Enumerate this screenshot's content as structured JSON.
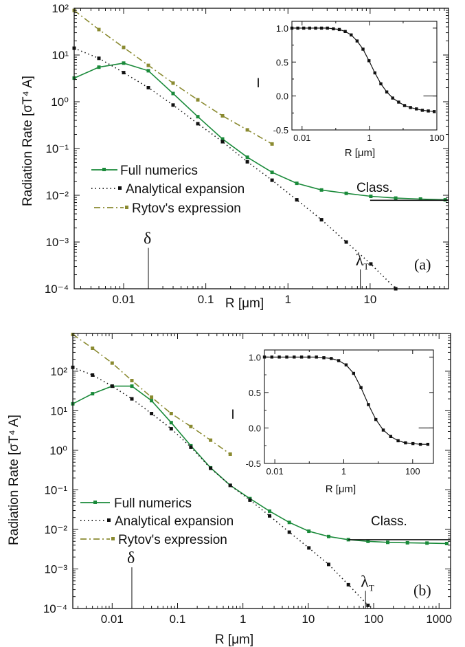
{
  "colors": {
    "full": "#1a8a3a",
    "analytical": "#111111",
    "rytov": "#8a8a30",
    "axis": "#111111"
  },
  "chart_data": [
    {
      "type": "line",
      "panel_label": "(a)",
      "xlabel": "R [μm]",
      "ylabel": "Radiation Rate [σT⁴ A]",
      "xscale": "log",
      "yscale": "log",
      "xlim": [
        0.0025,
        90
      ],
      "ylim": [
        0.0001,
        100
      ],
      "xticks": [
        0.01,
        0.1,
        1,
        10
      ],
      "xticklabels": [
        "0.01",
        "0.1",
        "1",
        "10"
      ],
      "yticks": [
        0.0001,
        0.001,
        0.01,
        0.1,
        1,
        10,
        100
      ],
      "yticklabels": [
        "10⁻⁴",
        "10⁻³",
        "10⁻²",
        "10⁻¹",
        "10⁰",
        "10¹",
        "10²"
      ],
      "series": [
        {
          "name": "Full numerics",
          "style": "full",
          "x": [
            0.0025,
            0.005,
            0.01,
            0.02,
            0.04,
            0.08,
            0.16,
            0.32,
            0.64,
            1.28,
            2.56,
            5.12,
            10.2,
            20.5,
            41,
            82
          ],
          "y": [
            3.2,
            5.5,
            6.7,
            4.6,
            1.5,
            0.48,
            0.16,
            0.065,
            0.031,
            0.018,
            0.013,
            0.011,
            0.0095,
            0.0087,
            0.0083,
            0.008
          ]
        },
        {
          "name": "Analytical expansion",
          "style": "analytical",
          "x": [
            0.0025,
            0.005,
            0.01,
            0.02,
            0.04,
            0.08,
            0.16,
            0.32,
            0.64,
            1.28,
            2.56,
            5.12,
            10.2,
            20.5
          ],
          "y": [
            14,
            8.5,
            4.2,
            2,
            0.85,
            0.34,
            0.14,
            0.052,
            0.021,
            0.008,
            0.003,
            0.001,
            0.00034,
            0.0001
          ]
        },
        {
          "name": "Rytov's expression",
          "style": "rytov",
          "x": [
            0.0025,
            0.005,
            0.01,
            0.02,
            0.04,
            0.08,
            0.16,
            0.32,
            0.64
          ],
          "y": [
            90,
            35,
            14.5,
            6,
            2.5,
            1.1,
            0.5,
            0.25,
            0.125
          ]
        }
      ],
      "classical": {
        "label": "Class.",
        "value": 0.0078,
        "x_from": 10,
        "x_to": 90
      },
      "markers": [
        {
          "label": "δ",
          "x": 0.02,
          "y_top": 0.00075
        },
        {
          "label": "λ",
          "sub": "T",
          "x": 7.6,
          "y_top": 0.00026
        }
      ],
      "inset": {
        "xlabel": "R [μm]",
        "ylabel": "I",
        "xlim": [
          0.005,
          100
        ],
        "ylim": [
          -0.5,
          1.1
        ],
        "xticks": [
          0.01,
          1,
          100
        ],
        "xticklabels": [
          "0.01",
          "1",
          "100"
        ],
        "yticks": [
          -0.5,
          0,
          0.5,
          1
        ],
        "yticklabels": [
          "-0.5",
          "0.0",
          "0.5",
          "1.0"
        ],
        "x": [
          0.005,
          0.0075,
          0.0112,
          0.0168,
          0.0252,
          0.0378,
          0.0567,
          0.085,
          0.1275,
          0.1913,
          0.287,
          0.43,
          0.645,
          0.968,
          1.45,
          2.18,
          3.27,
          4.9,
          7.35,
          11,
          16.5,
          24.8,
          37.2,
          55.8,
          83.7
        ],
        "y": [
          1,
          1,
          1,
          1,
          1,
          1,
          1,
          0.99,
          0.98,
          0.95,
          0.9,
          0.81,
          0.69,
          0.52,
          0.34,
          0.18,
          0.06,
          -0.03,
          -0.09,
          -0.14,
          -0.17,
          -0.19,
          -0.21,
          -0.22,
          -0.23
        ],
        "limit": {
          "value": 0,
          "x_from": 40,
          "x_to": 100
        }
      }
    },
    {
      "type": "line",
      "panel_label": "(b)",
      "xlabel": "R [μm]",
      "ylabel": "Radiation Rate [σT⁴ A]",
      "xscale": "log",
      "yscale": "log",
      "xlim": [
        0.0025,
        1500
      ],
      "ylim": [
        0.0001,
        900
      ],
      "xticks": [
        0.01,
        0.1,
        1,
        10,
        100,
        1000
      ],
      "xticklabels": [
        "0.01",
        "0.1",
        "1",
        "10",
        "100",
        "1000"
      ],
      "yticks": [
        0.0001,
        0.001,
        0.01,
        0.1,
        1,
        10,
        100
      ],
      "yticklabels": [
        "10⁻⁴",
        "10⁻³",
        "10⁻²",
        "10⁻¹",
        "10⁰",
        "10¹",
        "10²"
      ],
      "series": [
        {
          "name": "Full numerics",
          "style": "full",
          "x": [
            0.0025,
            0.005,
            0.01,
            0.02,
            0.04,
            0.08,
            0.16,
            0.32,
            0.64,
            1.28,
            2.56,
            5.12,
            10.2,
            20.5,
            41,
            82,
            164,
            328,
            655,
            1310
          ],
          "y": [
            15,
            27,
            42,
            42,
            18,
            5,
            1.3,
            0.36,
            0.13,
            0.06,
            0.029,
            0.015,
            0.009,
            0.0066,
            0.0055,
            0.005,
            0.0047,
            0.0046,
            0.0045,
            0.0044
          ]
        },
        {
          "name": "Analytical expansion",
          "style": "analytical",
          "x": [
            0.0025,
            0.005,
            0.01,
            0.02,
            0.04,
            0.08,
            0.16,
            0.32,
            0.64,
            1.28,
            2.56,
            5.12,
            10.2,
            20.5,
            41,
            82
          ],
          "y": [
            125,
            80,
            42,
            20,
            8.5,
            3.5,
            1.2,
            0.35,
            0.13,
            0.055,
            0.022,
            0.0085,
            0.0034,
            0.0013,
            0.0004,
            0.00012
          ]
        },
        {
          "name": "Rytov's expression",
          "style": "rytov",
          "x": [
            0.0025,
            0.005,
            0.01,
            0.02,
            0.04,
            0.08,
            0.16,
            0.32,
            0.64
          ],
          "y": [
            850,
            380,
            160,
            58,
            22,
            8.5,
            4,
            1.8,
            0.8
          ]
        }
      ],
      "classical": {
        "label": "Class.",
        "value": 0.0055,
        "x_from": 41,
        "x_to": 1500
      },
      "markers": [
        {
          "label": "δ",
          "x": 0.02,
          "y_top": 0.0011
        },
        {
          "label": "λ",
          "sub": "T",
          "x": 75,
          "y_top": 0.00028
        }
      ],
      "inset": {
        "xlabel": "R [μm]",
        "ylabel": "I",
        "xlim": [
          0.005,
          400
        ],
        "ylim": [
          -0.5,
          1.1
        ],
        "xticks": [
          0.01,
          1,
          100
        ],
        "xticklabels": [
          "0.01",
          "1",
          "100"
        ],
        "yticks": [
          -0.5,
          0,
          0.5,
          1
        ],
        "yticklabels": [
          "-0.5",
          "0.0",
          "0.5",
          "1.0"
        ],
        "x": [
          0.005,
          0.0082,
          0.0135,
          0.0222,
          0.0365,
          0.06,
          0.098,
          0.161,
          0.265,
          0.435,
          0.715,
          1.17,
          1.93,
          3.17,
          5.2,
          8.55,
          14,
          23,
          37.8,
          62,
          102,
          168,
          276
        ],
        "y": [
          1,
          1,
          1,
          1,
          1,
          1,
          1,
          1,
          0.99,
          0.98,
          0.95,
          0.89,
          0.77,
          0.57,
          0.33,
          0.12,
          -0.03,
          -0.12,
          -0.18,
          -0.21,
          -0.22,
          -0.23,
          -0.23
        ],
        "limit": {
          "value": 0,
          "x_from": 150,
          "x_to": 400
        }
      }
    }
  ]
}
